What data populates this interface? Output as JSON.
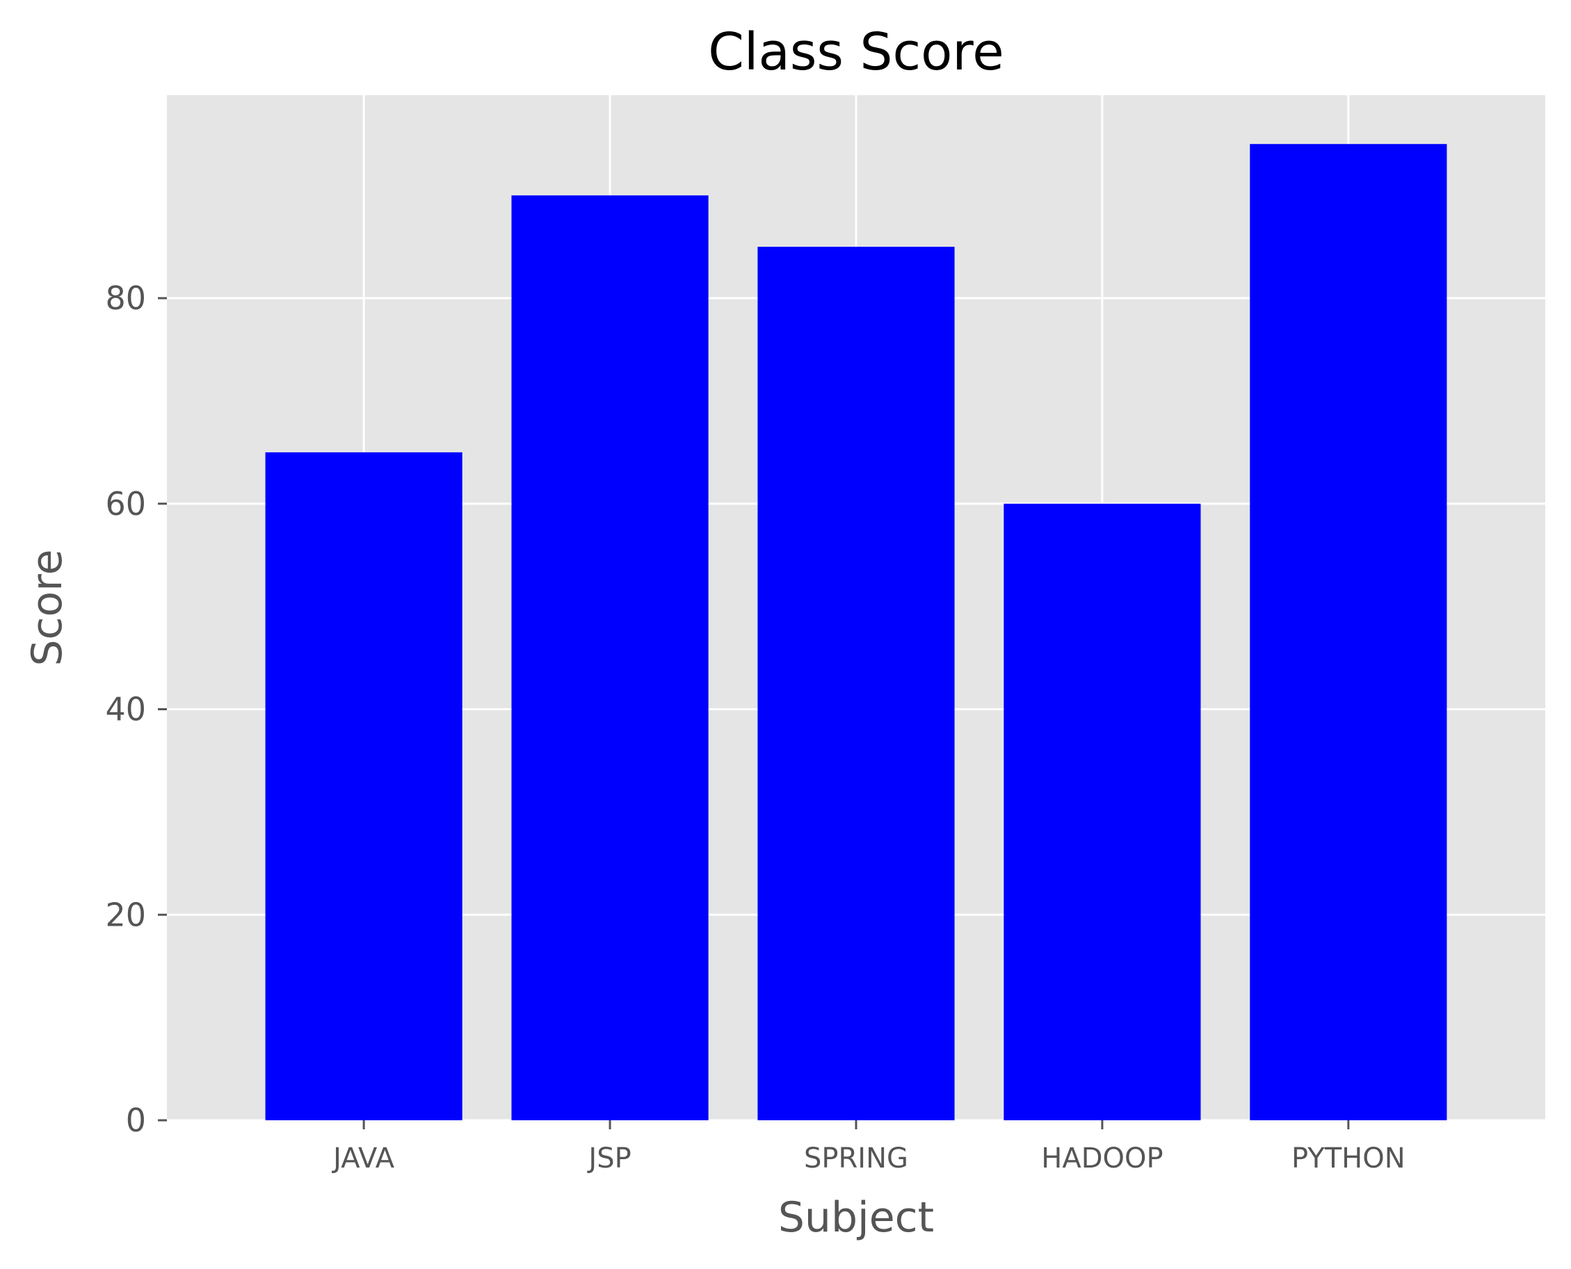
{
  "chart_data": {
    "type": "bar",
    "title": "Class Score",
    "xlabel": "Subject",
    "ylabel": "Score",
    "categories": [
      "JAVA",
      "JSP",
      "SPRING",
      "HADOOP",
      "PYTHON"
    ],
    "values": [
      65,
      90,
      85,
      60,
      95
    ],
    "ylim": [
      0,
      99.75
    ],
    "yticks": [
      0,
      20,
      40,
      60,
      80
    ],
    "grid": true,
    "legend": "none",
    "colors": {
      "bar": "#0000ff",
      "plot_background": "#e5e5e5",
      "grid": "#ffffff",
      "tick_text": "#555555",
      "title_text": "#000000"
    }
  }
}
